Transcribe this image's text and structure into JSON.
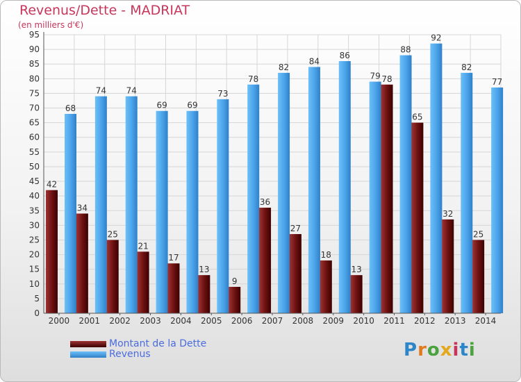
{
  "title": "Revenus/Dette - MADRIAT",
  "subtitle": "(en milliers d'€)",
  "logo_text": "Proxiti",
  "colors": {
    "dette": "#7a1c1c",
    "revenus": "#4aa2e8",
    "title": "#c8355a",
    "legend_text": "#4a6cdd"
  },
  "chart_data": {
    "type": "bar",
    "title": "Revenus/Dette - MADRIAT",
    "subtitle": "(en milliers d'€)",
    "categories": [
      "2000",
      "2001",
      "2002",
      "2003",
      "2004",
      "2005",
      "2006",
      "2007",
      "2008",
      "2009",
      "2010",
      "2011",
      "2012",
      "2013",
      "2014"
    ],
    "series": [
      {
        "name": "Montant de la Dette",
        "values": [
          42,
          34,
          25,
          21,
          17,
          13,
          9,
          36,
          27,
          18,
          13,
          78,
          65,
          32,
          25
        ]
      },
      {
        "name": "Revenus",
        "values": [
          68,
          74,
          74,
          69,
          69,
          73,
          78,
          82,
          84,
          86,
          79,
          88,
          92,
          82,
          77
        ]
      }
    ],
    "ylim": [
      0,
      95
    ],
    "ytick_step": 5,
    "grid": true,
    "legend_position": "bottom-left"
  }
}
